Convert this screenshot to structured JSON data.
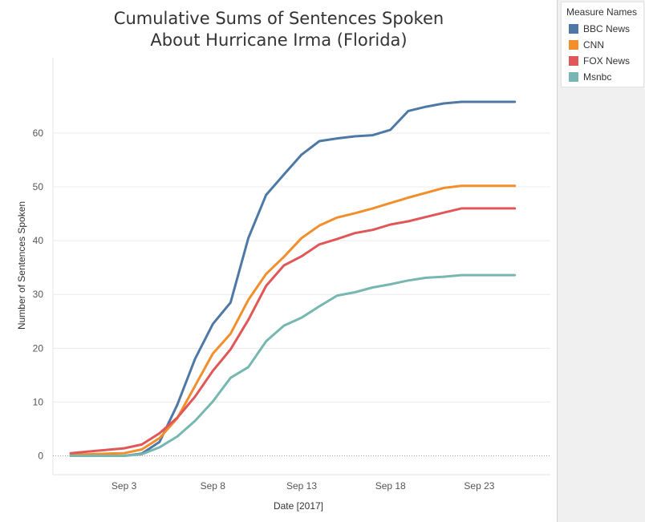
{
  "chart_data": {
    "type": "line",
    "title": [
      "Cumulative Sums of Sentences Spoken",
      "About Hurricane Irma (Florida)"
    ],
    "xlabel": "Date [2017]",
    "ylabel": "Number of Sentences Spoken",
    "xlim": [
      "2017-08-30",
      "2017-09-27"
    ],
    "ylim": [
      -3.5,
      74
    ],
    "y_ticks": [
      0,
      10,
      20,
      30,
      40,
      50,
      60
    ],
    "x_ticks": [
      {
        "date": "2017-09-03",
        "label": "Sep 3"
      },
      {
        "date": "2017-09-08",
        "label": "Sep 8"
      },
      {
        "date": "2017-09-13",
        "label": "Sep 13"
      },
      {
        "date": "2017-09-18",
        "label": "Sep 18"
      },
      {
        "date": "2017-09-23",
        "label": "Sep 23"
      }
    ],
    "grid": "horizontal",
    "legend_title": "Measure Names",
    "legend_position": "right",
    "x": [
      "2017-08-31",
      "2017-09-01",
      "2017-09-02",
      "2017-09-03",
      "2017-09-04",
      "2017-09-05",
      "2017-09-06",
      "2017-09-07",
      "2017-09-08",
      "2017-09-09",
      "2017-09-10",
      "2017-09-11",
      "2017-09-12",
      "2017-09-13",
      "2017-09-14",
      "2017-09-15",
      "2017-09-16",
      "2017-09-17",
      "2017-09-18",
      "2017-09-19",
      "2017-09-20",
      "2017-09-21",
      "2017-09-22",
      "2017-09-23",
      "2017-09-24",
      "2017-09-25"
    ],
    "series": [
      {
        "name": "BBC News",
        "color": "#4e79a7",
        "values": [
          0,
          0,
          0,
          0,
          0.4,
          2.6,
          9.5,
          18,
          24.5,
          28.5,
          40.5,
          48.5,
          52.3,
          56,
          58.5,
          59,
          59.4,
          59.6,
          60.6,
          64.1,
          64.9,
          65.5,
          65.8,
          65.8,
          65.8,
          65.8
        ]
      },
      {
        "name": "CNN",
        "color": "#f28e2b",
        "values": [
          0.2,
          0.3,
          0.4,
          0.5,
          1.2,
          3.3,
          7,
          13,
          19,
          22.7,
          29,
          33.8,
          37,
          40.5,
          42.8,
          44.3,
          45.1,
          46,
          47,
          48,
          48.9,
          49.8,
          50.2,
          50.2,
          50.2,
          50.2
        ]
      },
      {
        "name": "FOX News",
        "color": "#e15759",
        "values": [
          0.5,
          0.8,
          1.1,
          1.4,
          2.1,
          4.2,
          7.1,
          11,
          15.8,
          19.8,
          25.3,
          31.6,
          35.4,
          37.1,
          39.3,
          40.3,
          41.4,
          42,
          43,
          43.6,
          44.4,
          45.2,
          46,
          46,
          46,
          46
        ]
      },
      {
        "name": "Msnbc",
        "color": "#76b7b2",
        "values": [
          0,
          0,
          0,
          0,
          0.3,
          1.6,
          3.6,
          6.5,
          10.1,
          14.5,
          16.5,
          21.3,
          24.2,
          25.7,
          27.8,
          29.8,
          30.4,
          31.3,
          31.9,
          32.6,
          33.1,
          33.3,
          33.6,
          33.6,
          33.6,
          33.6
        ]
      }
    ]
  }
}
